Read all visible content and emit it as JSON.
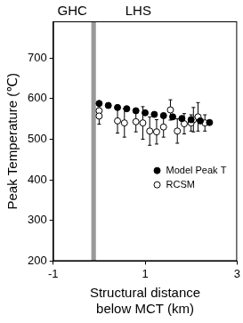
{
  "chart_data": {
    "type": "scatter",
    "x_label": [
      "Structural distance",
      "below MCT (km)"
    ],
    "y_label": "Peak Temperature (℃)",
    "xlim": [
      -1,
      3
    ],
    "xticks": [
      -1,
      1,
      3
    ],
    "ylim": [
      200,
      790
    ],
    "yticks": [
      200,
      300,
      400,
      500,
      600,
      700
    ],
    "grid": false,
    "legend": "center right",
    "zone_labels": [
      "GHC",
      "LHS"
    ],
    "mct_band": [
      -0.17,
      -0.07
    ],
    "band_color": "#999999",
    "series": [
      {
        "name": "Model Peak T",
        "color": "#000000",
        "marker": "circle",
        "x": [
          0.0,
          0.2,
          0.4,
          0.6,
          0.8,
          1.0,
          1.2,
          1.4,
          1.6,
          1.8,
          2.0,
          2.2,
          2.4
        ],
        "values": [
          588,
          583,
          578,
          575,
          570,
          565,
          561,
          558,
          555,
          551,
          548,
          545,
          541
        ]
      },
      {
        "name": "RCSM",
        "color": "#000000",
        "marker": "open circle",
        "x": [
          0.0,
          0.0,
          0.4,
          0.55,
          0.8,
          0.95,
          1.1,
          1.25,
          1.4,
          1.55,
          1.7,
          1.85,
          2.0,
          2.05,
          2.15,
          2.3
        ],
        "values": [
          570,
          557,
          545,
          540,
          543,
          540,
          520,
          518,
          530,
          572,
          520,
          538,
          540,
          548,
          555,
          540
        ],
        "errors": [
          20,
          20,
          30,
          35,
          25,
          40,
          35,
          30,
          25,
          25,
          30,
          25,
          20,
          30,
          35,
          20
        ]
      }
    ]
  }
}
